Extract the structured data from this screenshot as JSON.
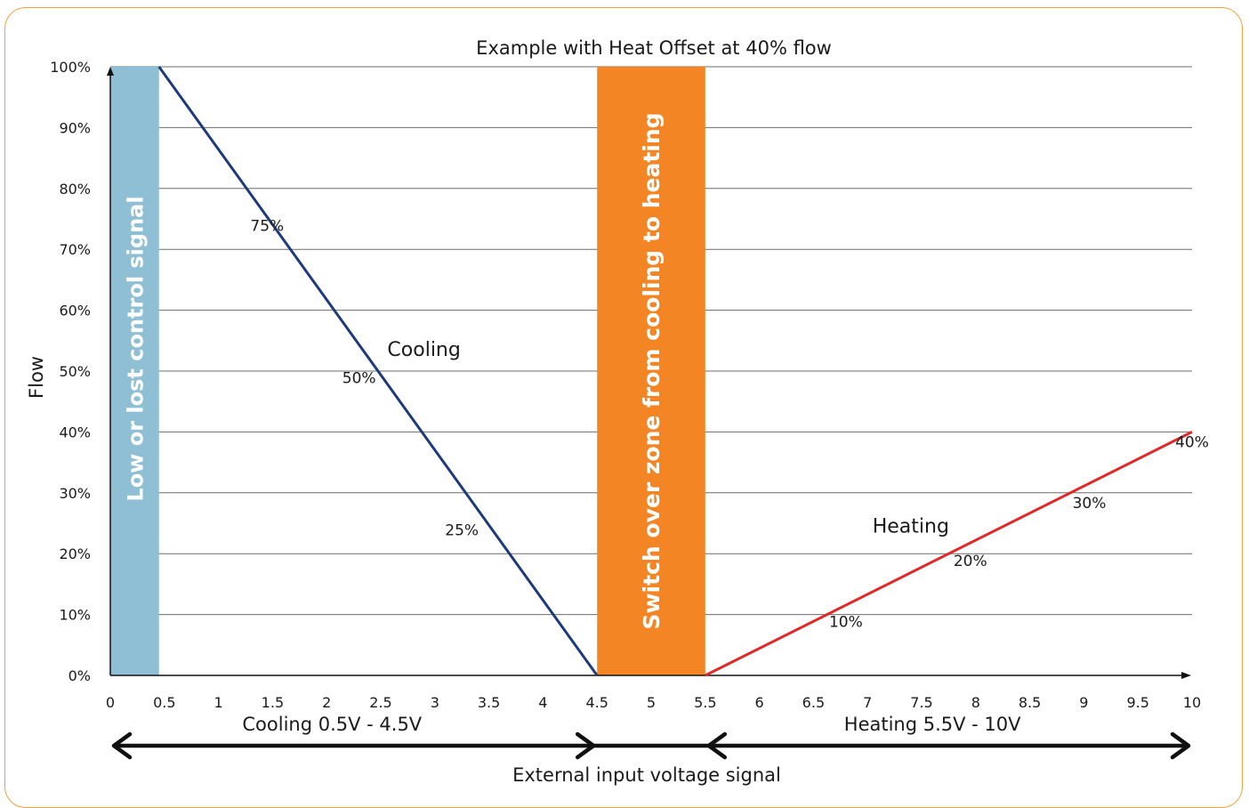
{
  "chart_data": {
    "type": "line",
    "title": "Example with Heat Offset at 40% flow",
    "xlabel": "External input voltage signal",
    "ylabel": "Flow",
    "xlim": [
      0,
      10
    ],
    "ylim": [
      0,
      100
    ],
    "grid": "horizontal",
    "x_ticks": [
      "0",
      "0.5",
      "1",
      "1.5",
      "2",
      "2.5",
      "3",
      "3.5",
      "4",
      "4.5",
      "5",
      "5.5",
      "6",
      "6.5",
      "7",
      "7.5",
      "8",
      "8.5",
      "9",
      "9.5",
      "10"
    ],
    "y_ticks": [
      "0%",
      "10%",
      "20%",
      "30%",
      "40%",
      "50%",
      "60%",
      "70%",
      "80%",
      "90%",
      "100%"
    ],
    "bands": [
      {
        "label": "Low or lost control signal",
        "x_from": 0,
        "x_to": 0.45,
        "color": "#8fbfd4"
      },
      {
        "label": "Switch over zone from cooling to heating",
        "x_from": 4.5,
        "x_to": 5.5,
        "color": "#f38525"
      }
    ],
    "series": [
      {
        "name": "Cooling",
        "color": "#1f3a7a",
        "x": [
          0.45,
          4.5
        ],
        "y": [
          100,
          0
        ]
      },
      {
        "name": "Heating",
        "color": "#e02a2a",
        "x": [
          5.5,
          10
        ],
        "y": [
          0,
          40
        ]
      }
    ],
    "point_labels": [
      {
        "text": "75%",
        "x": 1.45,
        "y": 73
      },
      {
        "text": "50%",
        "x": 2.3,
        "y": 48
      },
      {
        "text": "25%",
        "x": 3.25,
        "y": 23
      },
      {
        "text": "10%",
        "x": 6.8,
        "y": 8
      },
      {
        "text": "20%",
        "x": 7.95,
        "y": 18
      },
      {
        "text": "30%",
        "x": 9.05,
        "y": 27.5
      },
      {
        "text": "40%",
        "x": 10,
        "y": 37.5
      }
    ],
    "series_labels": [
      {
        "text": "Cooling",
        "x": 2.9,
        "y": 52.5
      },
      {
        "text": "Heating",
        "x": 7.4,
        "y": 23.5
      }
    ],
    "ranges": [
      {
        "text": "Cooling 0.5V - 4.5V",
        "x_from": 0,
        "x_to": 4.5,
        "label_x": 2.05
      },
      {
        "text": "Heating 5.5V - 10V",
        "x_from": 5.5,
        "x_to": 10,
        "label_x": 7.6
      }
    ]
  }
}
